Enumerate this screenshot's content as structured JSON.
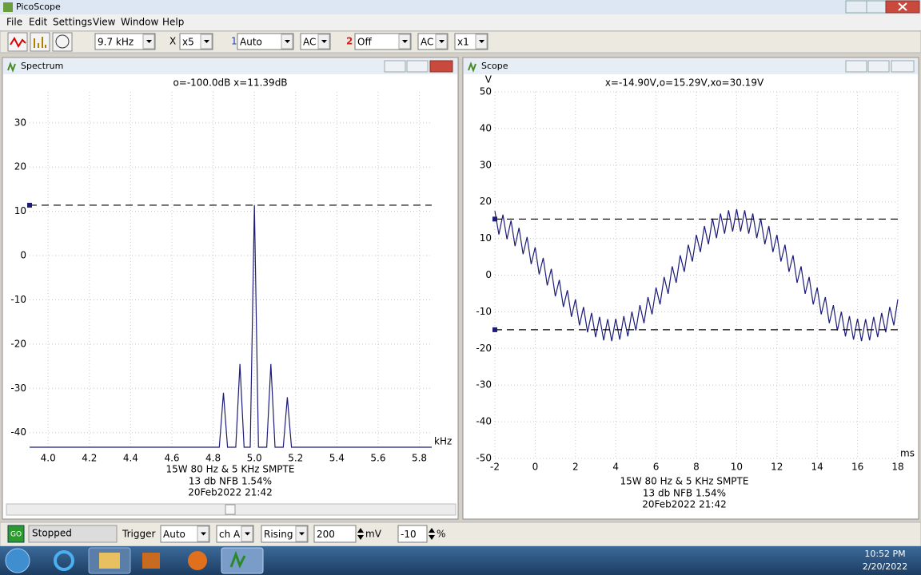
{
  "window": {
    "title": "PicoScope"
  },
  "menu": [
    "File",
    "Edit",
    "Settings",
    "View",
    "Window",
    "Help"
  ],
  "toolbar": {
    "timebase": "9.7 kHz",
    "x_label": "X",
    "zoom": "x5",
    "ch_a_num": "1",
    "ch_a_range": "Auto",
    "ch_a_coupling": "AC",
    "ch_b_num": "2",
    "ch_b_range": "Off",
    "ch_b_coupling": "AC",
    "multiplier": "x1"
  },
  "windows": [
    "Spectrum",
    "Scope"
  ],
  "chart_data": [
    {
      "type": "line",
      "readout": "o=-100.0dB  x=11.39dB",
      "x_unit": "kHz",
      "grid": true,
      "xlim": [
        3.91,
        5.86
      ],
      "ylim": [
        -43.3,
        37
      ],
      "xticks": [
        {
          "value": 4,
          "label": "4.0"
        },
        4.2,
        4.4,
        4.6,
        4.8,
        {
          "value": 5,
          "label": "5.0"
        },
        5.2,
        5.4,
        5.6,
        5.8
      ],
      "yticks": [
        -40,
        -30,
        -20,
        -10,
        0,
        10,
        20,
        30
      ],
      "cursors": [
        11.39
      ],
      "captions": [
        "15W 80 Hz & 5 KHz SMPTE",
        "13 db NFB 1.54%",
        "20Feb2022  21:42"
      ],
      "series": [
        {
          "color": "#1c1c78",
          "x": [
            3.91,
            4.83,
            4.85,
            4.87,
            4.91,
            4.93,
            4.95,
            4.98,
            5.0,
            5.02,
            5.06,
            5.08,
            5.1,
            5.14,
            5.16,
            5.18,
            5.86
          ],
          "values": [
            -43.3,
            -43.3,
            -31,
            -43.3,
            -43.3,
            -24.5,
            -43.3,
            -43.3,
            11.39,
            -43.3,
            -43.3,
            -24.5,
            -43.3,
            -43.3,
            -32,
            -43.3,
            -43.3
          ]
        }
      ]
    },
    {
      "type": "line",
      "readout": "x=-14.90V,o=15.29V,xo=30.19V",
      "y_unit": "V",
      "x_unit": "ms",
      "grid": true,
      "xlim": [
        -2,
        18
      ],
      "ylim": [
        -50,
        50
      ],
      "xticks": [
        -2,
        0,
        2,
        4,
        6,
        8,
        10,
        12,
        14,
        16,
        18
      ],
      "yticks": [
        -50,
        -40,
        -30,
        -20,
        -10,
        0,
        10,
        20,
        30,
        40,
        50
      ],
      "cursors": [
        15.29,
        -14.9
      ],
      "captions": [
        "15W 80 Hz & 5 KHz SMPTE",
        "13 db NFB 1.54%",
        "20Feb2022  21:42"
      ],
      "series": [
        {
          "color": "#1c1c78",
          "x": [
            -2,
            -1.8,
            -1.6,
            -1.4,
            -1.2,
            -1,
            -0.8,
            -0.6,
            -0.4,
            -0.2,
            0,
            0.2,
            0.4,
            0.6,
            0.8,
            1,
            1.2,
            1.4,
            1.6,
            1.8,
            2,
            2.2,
            2.4,
            2.6,
            2.8,
            3,
            3.2,
            3.4,
            3.6,
            3.8,
            4,
            4.2,
            4.4,
            4.6,
            4.8,
            5,
            5.2,
            5.4,
            5.6,
            5.8,
            6,
            6.2,
            6.4,
            6.6,
            6.8,
            7,
            7.2,
            7.4,
            7.6,
            7.8,
            8,
            8.2,
            8.4,
            8.6,
            8.8,
            9,
            9.2,
            9.4,
            9.6,
            9.8,
            10,
            10.2,
            10.4,
            10.6,
            10.8,
            11,
            11.2,
            11.4,
            11.6,
            11.8,
            12,
            12.2,
            12.4,
            12.6,
            12.8,
            13,
            13.2,
            13.4,
            13.6,
            13.8,
            14,
            14.2,
            14.4,
            14.6,
            14.8,
            15,
            15.2,
            15.4,
            15.6,
            15.8,
            16,
            16.2,
            16.4,
            16.6,
            16.8,
            17,
            17.2,
            17.4,
            17.6,
            17.8,
            18
          ],
          "values": [
            17.5,
            11.1,
            16.5,
            9.8,
            14.9,
            7.9,
            12.9,
            5.7,
            10.4,
            3.0,
            7.6,
            0.2,
            4.7,
            -2.8,
            1.7,
            -5.8,
            -1.3,
            -8.7,
            -4.1,
            -11.4,
            -6.6,
            -13.7,
            -8.7,
            -15.6,
            -10.3,
            -16.9,
            -11.4,
            -17.8,
            -12.0,
            -18.0,
            -11.9,
            -17.6,
            -11.2,
            -16.7,
            -10.0,
            -15.1,
            -8.2,
            -13.1,
            -6.0,
            -10.7,
            -3.4,
            -8.0,
            -0.5,
            -5.1,
            2.4,
            -2.1,
            5.4,
            0.9,
            8.3,
            3.7,
            11.0,
            6.3,
            13.4,
            8.4,
            15.4,
            10.1,
            16.8,
            11.3,
            17.7,
            11.9,
            18.0,
            11.9,
            17.7,
            11.3,
            16.8,
            10.1,
            15.4,
            8.4,
            13.4,
            6.3,
            11.0,
            3.7,
            8.3,
            0.9,
            5.4,
            -2.1,
            2.4,
            -5.1,
            -0.5,
            -8.0,
            -3.4,
            -10.7,
            -6.0,
            -13.1,
            -8.2,
            -15.1,
            -10.0,
            -16.7,
            -11.2,
            -17.6,
            -11.9,
            -18.0,
            -12.0,
            -17.8,
            -11.4,
            -16.9,
            -10.3,
            -15.6,
            -8.7,
            -13.7,
            -6.6
          ]
        }
      ]
    }
  ],
  "status": {
    "go": "GO",
    "state": "Stopped",
    "trigger": "Trigger",
    "mode": "Auto",
    "channel": "ch A",
    "edge": "Rising",
    "level": "200",
    "level_unit": "mV",
    "delay": "-10",
    "delay_unit": "%"
  },
  "taskbar": {
    "time": "10:52 PM",
    "date": "2/20/2022"
  }
}
